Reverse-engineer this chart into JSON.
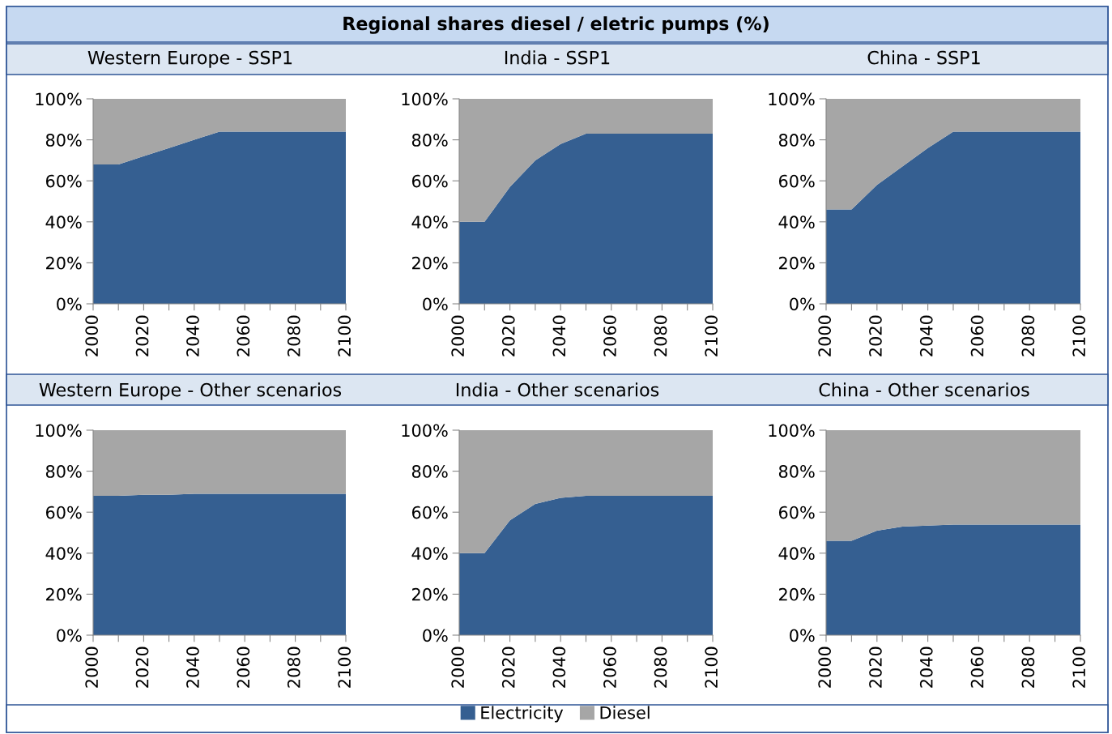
{
  "chart_data": [
    {
      "type": "area",
      "stacked": true,
      "title": "Western Europe - SSP1",
      "legend": "bottom",
      "annotations": [
        "Regional shares diesel / eletric pumps (%)"
      ],
      "x": [
        2000,
        2010,
        2020,
        2030,
        2040,
        2050,
        2060,
        2070,
        2080,
        2090,
        2100
      ],
      "xlim": [
        2000,
        2100
      ],
      "xticks": [
        2000,
        {
          "value": 2010,
          "label": null
        },
        2020,
        {
          "value": 2030,
          "label": null
        },
        2040,
        {
          "value": 2050,
          "label": null
        },
        2060,
        {
          "value": 2070,
          "label": null
        },
        2080,
        {
          "value": 2090,
          "label": null
        },
        2100
      ],
      "ylim": [
        0,
        100
      ],
      "yticks": [
        {
          "value": 0,
          "label": "0%"
        },
        {
          "value": 20,
          "label": "20%"
        },
        {
          "value": 40,
          "label": "40%"
        },
        {
          "value": 60,
          "label": "60%"
        },
        {
          "value": 80,
          "label": "80%"
        },
        {
          "value": 100,
          "label": "100%"
        }
      ],
      "series": [
        {
          "name": "Electricity",
          "color": "#355f91",
          "values": [
            68,
            68,
            72,
            76,
            80,
            84,
            84,
            84,
            84,
            84,
            84
          ]
        },
        {
          "name": "Diesel",
          "color": "#a6a6a6",
          "values": [
            32,
            32,
            28,
            24,
            20,
            16,
            16,
            16,
            16,
            16,
            16
          ]
        }
      ]
    },
    {
      "type": "area",
      "stacked": true,
      "title": "India - SSP1",
      "x": [
        2000,
        2010,
        2020,
        2030,
        2040,
        2050,
        2060,
        2070,
        2080,
        2090,
        2100
      ],
      "xlim": [
        2000,
        2100
      ],
      "xticks": [
        2000,
        {
          "value": 2010,
          "label": null
        },
        2020,
        {
          "value": 2030,
          "label": null
        },
        2040,
        {
          "value": 2050,
          "label": null
        },
        2060,
        {
          "value": 2070,
          "label": null
        },
        2080,
        {
          "value": 2090,
          "label": null
        },
        2100
      ],
      "ylim": [
        0,
        100
      ],
      "yticks": [
        {
          "value": 0,
          "label": "0%"
        },
        {
          "value": 20,
          "label": "20%"
        },
        {
          "value": 40,
          "label": "40%"
        },
        {
          "value": 60,
          "label": "60%"
        },
        {
          "value": 80,
          "label": "80%"
        },
        {
          "value": 100,
          "label": "100%"
        }
      ],
      "series": [
        {
          "color": "#355f91",
          "values": [
            40,
            40,
            57,
            70,
            78,
            83,
            83,
            83,
            83,
            83,
            83
          ]
        },
        {
          "color": "#a6a6a6",
          "values": [
            60,
            60,
            43,
            30,
            22,
            17,
            17,
            17,
            17,
            17,
            17
          ]
        }
      ]
    },
    {
      "type": "area",
      "stacked": true,
      "title": "China - SSP1",
      "x": [
        2000,
        2010,
        2020,
        2030,
        2040,
        2050,
        2060,
        2070,
        2080,
        2090,
        2100
      ],
      "xlim": [
        2000,
        2100
      ],
      "xticks": [
        2000,
        {
          "value": 2010,
          "label": null
        },
        2020,
        {
          "value": 2030,
          "label": null
        },
        2040,
        {
          "value": 2050,
          "label": null
        },
        2060,
        {
          "value": 2070,
          "label": null
        },
        2080,
        {
          "value": 2090,
          "label": null
        },
        2100
      ],
      "ylim": [
        0,
        100
      ],
      "yticks": [
        {
          "value": 0,
          "label": "0%"
        },
        {
          "value": 20,
          "label": "20%"
        },
        {
          "value": 40,
          "label": "40%"
        },
        {
          "value": 60,
          "label": "60%"
        },
        {
          "value": 80,
          "label": "80%"
        },
        {
          "value": 100,
          "label": "100%"
        }
      ],
      "series": [
        {
          "color": "#355f91",
          "values": [
            46,
            46,
            58,
            67,
            76,
            84,
            84,
            84,
            84,
            84,
            84
          ]
        },
        {
          "color": "#a6a6a6",
          "values": [
            54,
            54,
            42,
            33,
            24,
            16,
            16,
            16,
            16,
            16,
            16
          ]
        }
      ]
    },
    {
      "type": "area",
      "stacked": true,
      "title": "Western Europe - Other scenarios",
      "x": [
        2000,
        2010,
        2020,
        2030,
        2040,
        2050,
        2060,
        2070,
        2080,
        2090,
        2100
      ],
      "xlim": [
        2000,
        2100
      ],
      "xticks": [
        2000,
        {
          "value": 2010,
          "label": null
        },
        2020,
        {
          "value": 2030,
          "label": null
        },
        2040,
        {
          "value": 2050,
          "label": null
        },
        2060,
        {
          "value": 2070,
          "label": null
        },
        2080,
        {
          "value": 2090,
          "label": null
        },
        2100
      ],
      "ylim": [
        0,
        100
      ],
      "yticks": [
        {
          "value": 0,
          "label": "0%"
        },
        {
          "value": 20,
          "label": "20%"
        },
        {
          "value": 40,
          "label": "40%"
        },
        {
          "value": 60,
          "label": "60%"
        },
        {
          "value": 80,
          "label": "80%"
        },
        {
          "value": 100,
          "label": "100%"
        }
      ],
      "series": [
        {
          "color": "#355f91",
          "values": [
            68,
            68,
            68.5,
            68.5,
            69,
            69,
            69,
            69,
            69,
            69,
            69
          ]
        },
        {
          "color": "#a6a6a6",
          "values": [
            32,
            32,
            31.5,
            31.5,
            31,
            31,
            31,
            31,
            31,
            31,
            31
          ]
        }
      ]
    },
    {
      "type": "area",
      "stacked": true,
      "title": "India - Other scenarios",
      "x": [
        2000,
        2010,
        2020,
        2030,
        2040,
        2050,
        2060,
        2070,
        2080,
        2090,
        2100
      ],
      "xlim": [
        2000,
        2100
      ],
      "xticks": [
        2000,
        {
          "value": 2010,
          "label": null
        },
        2020,
        {
          "value": 2030,
          "label": null
        },
        2040,
        {
          "value": 2050,
          "label": null
        },
        2060,
        {
          "value": 2070,
          "label": null
        },
        2080,
        {
          "value": 2090,
          "label": null
        },
        2100
      ],
      "ylim": [
        0,
        100
      ],
      "yticks": [
        {
          "value": 0,
          "label": "0%"
        },
        {
          "value": 20,
          "label": "20%"
        },
        {
          "value": 40,
          "label": "40%"
        },
        {
          "value": 60,
          "label": "60%"
        },
        {
          "value": 80,
          "label": "80%"
        },
        {
          "value": 100,
          "label": "100%"
        }
      ],
      "series": [
        {
          "color": "#355f91",
          "values": [
            40,
            40,
            56,
            64,
            67,
            68,
            68,
            68,
            68,
            68,
            68
          ]
        },
        {
          "color": "#a6a6a6",
          "values": [
            60,
            60,
            44,
            36,
            33,
            32,
            32,
            32,
            32,
            32,
            32
          ]
        }
      ]
    },
    {
      "type": "area",
      "stacked": true,
      "title": "China - Other scenarios",
      "x": [
        2000,
        2010,
        2020,
        2030,
        2040,
        2050,
        2060,
        2070,
        2080,
        2090,
        2100
      ],
      "xlim": [
        2000,
        2100
      ],
      "xticks": [
        2000,
        {
          "value": 2010,
          "label": null
        },
        2020,
        {
          "value": 2030,
          "label": null
        },
        2040,
        {
          "value": 2050,
          "label": null
        },
        2060,
        {
          "value": 2070,
          "label": null
        },
        2080,
        {
          "value": 2090,
          "label": null
        },
        2100
      ],
      "ylim": [
        0,
        100
      ],
      "yticks": [
        {
          "value": 0,
          "label": "0%"
        },
        {
          "value": 20,
          "label": "20%"
        },
        {
          "value": 40,
          "label": "40%"
        },
        {
          "value": 60,
          "label": "60%"
        },
        {
          "value": 80,
          "label": "80%"
        },
        {
          "value": 100,
          "label": "100%"
        }
      ],
      "series": [
        {
          "color": "#355f91",
          "values": [
            46,
            46,
            51,
            53,
            53.5,
            54,
            54,
            54,
            54,
            54,
            54
          ]
        },
        {
          "color": "#a6a6a6",
          "values": [
            54,
            54,
            49,
            47,
            46.5,
            46,
            46,
            46,
            46,
            46,
            46
          ]
        }
      ]
    }
  ]
}
